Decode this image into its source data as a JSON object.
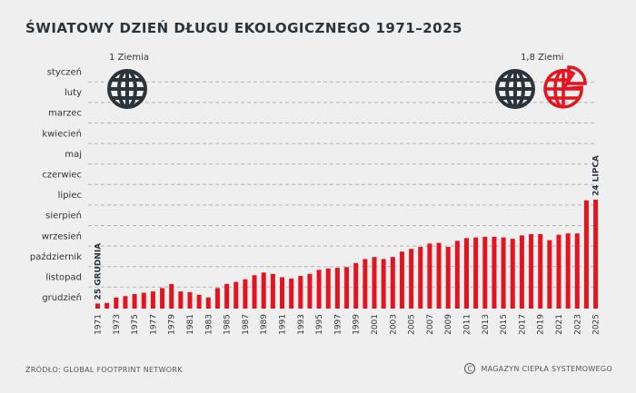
{
  "title": "ŚWIATOWY DZIEŃ DŁUGU EKOLOGICZNEGO 1971–2025",
  "footer": {
    "source": "ŹRÓDŁO: GLOBAL FOOTPRINT NETWORK",
    "copyright_symbol": "C",
    "credit": "MAGAZYN CIEPŁA SYSTEMOWEGO"
  },
  "icons": {
    "one_earth_label": "1 Ziemia",
    "more_earth_label": "1,8 Ziemi",
    "one_earth_icon": "globe-icon",
    "more_earth_icons": [
      "globe-icon",
      "partial-globe-icon"
    ],
    "colors": {
      "dark": "#2b333b",
      "red": "#e3141f"
    }
  },
  "chart_data": {
    "type": "bar",
    "title": "ŚWIATOWY DZIEŃ DŁUGU EKOLOGICZNEGO 1971–2025",
    "bar_color": "#e3141f",
    "grid": "dashed-horizontal",
    "y_axis": {
      "labels": [
        "styczeń",
        "luty",
        "marzec",
        "kwiecień",
        "maj",
        "czerwiec",
        "lipiec",
        "sierpień",
        "wrzesień",
        "październik",
        "listopad",
        "grudzień"
      ],
      "direction": "styczeń at top, grudzień at bottom"
    },
    "x": [
      1971,
      1972,
      1973,
      1974,
      1975,
      1976,
      1977,
      1978,
      1979,
      1980,
      1981,
      1982,
      1983,
      1984,
      1985,
      1986,
      1987,
      1988,
      1989,
      1990,
      1991,
      1992,
      1993,
      1994,
      1995,
      1996,
      1997,
      1998,
      1999,
      2000,
      2001,
      2002,
      2003,
      2004,
      2005,
      2006,
      2007,
      2008,
      2009,
      2010,
      2011,
      2012,
      2013,
      2014,
      2015,
      2016,
      2017,
      2018,
      2019,
      2020,
      2021,
      2022,
      2023,
      2024,
      2025
    ],
    "x_tick_labels": [
      "1971",
      "1973",
      "1975",
      "1977",
      "1979",
      "1981",
      "1983",
      "1985",
      "1987",
      "1989",
      "1991",
      "1993",
      "1995",
      "1997",
      "1999",
      "2001",
      "2003",
      "2005",
      "2007",
      "2009",
      "2011",
      "2013",
      "2015",
      "2017",
      "2019",
      "2021",
      "2023",
      "2025"
    ],
    "day_of_year": [
      359,
      358,
      350,
      348,
      345,
      343,
      341,
      336,
      330,
      341,
      342,
      346,
      350,
      336,
      330,
      327,
      323,
      317,
      313,
      315,
      320,
      322,
      318,
      315,
      309,
      307,
      306,
      305,
      299,
      293,
      290,
      293,
      290,
      282,
      278,
      275,
      270,
      269,
      275,
      266,
      262,
      261,
      260,
      260,
      261,
      263,
      258,
      256,
      256,
      265,
      257,
      255,
      255,
      206,
      205
    ],
    "annotations": [
      {
        "year": 1971,
        "text": "25 GRUDNIA"
      },
      {
        "year": 2025,
        "text": "24 LIPCA"
      }
    ]
  }
}
